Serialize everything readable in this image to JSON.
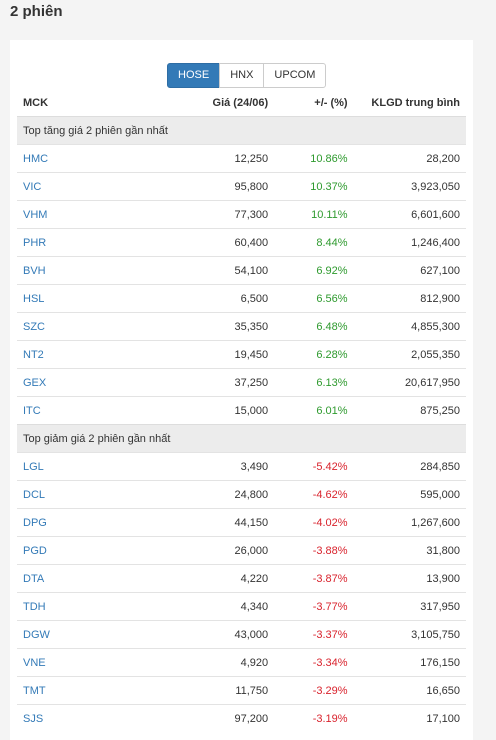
{
  "page": {
    "title": "2 phiên"
  },
  "tabs": [
    {
      "label": "HOSE",
      "active": true
    },
    {
      "label": "HNX",
      "active": false
    },
    {
      "label": "UPCOM",
      "active": false
    }
  ],
  "table": {
    "headers": {
      "symbol": "MCK",
      "price": "Giá (24/06)",
      "change": "+/- (%)",
      "volume": "KLGD trung bình"
    },
    "gainers": {
      "title": "Top tăng giá 2 phiên gần nhất",
      "rows": [
        {
          "symbol": "HMC",
          "price": "12,250",
          "change": "10.86%",
          "volume": "28,200"
        },
        {
          "symbol": "VIC",
          "price": "95,800",
          "change": "10.37%",
          "volume": "3,923,050"
        },
        {
          "symbol": "VHM",
          "price": "77,300",
          "change": "10.11%",
          "volume": "6,601,600"
        },
        {
          "symbol": "PHR",
          "price": "60,400",
          "change": "8.44%",
          "volume": "1,246,400"
        },
        {
          "symbol": "BVH",
          "price": "54,100",
          "change": "6.92%",
          "volume": "627,100"
        },
        {
          "symbol": "HSL",
          "price": "6,500",
          "change": "6.56%",
          "volume": "812,900"
        },
        {
          "symbol": "SZC",
          "price": "35,350",
          "change": "6.48%",
          "volume": "4,855,300"
        },
        {
          "symbol": "NT2",
          "price": "19,450",
          "change": "6.28%",
          "volume": "2,055,350"
        },
        {
          "symbol": "GEX",
          "price": "37,250",
          "change": "6.13%",
          "volume": "20,617,950"
        },
        {
          "symbol": "ITC",
          "price": "15,000",
          "change": "6.01%",
          "volume": "875,250"
        }
      ]
    },
    "losers": {
      "title": "Top giảm giá 2 phiên gần nhất",
      "rows": [
        {
          "symbol": "LGL",
          "price": "3,490",
          "change": "-5.42%",
          "volume": "284,850"
        },
        {
          "symbol": "DCL",
          "price": "24,800",
          "change": "-4.62%",
          "volume": "595,000"
        },
        {
          "symbol": "DPG",
          "price": "44,150",
          "change": "-4.02%",
          "volume": "1,267,600"
        },
        {
          "symbol": "PGD",
          "price": "26,000",
          "change": "-3.88%",
          "volume": "31,800"
        },
        {
          "symbol": "DTA",
          "price": "4,220",
          "change": "-3.87%",
          "volume": "13,900"
        },
        {
          "symbol": "TDH",
          "price": "4,340",
          "change": "-3.77%",
          "volume": "317,950"
        },
        {
          "symbol": "DGW",
          "price": "43,000",
          "change": "-3.37%",
          "volume": "3,105,750"
        },
        {
          "symbol": "VNE",
          "price": "4,920",
          "change": "-3.34%",
          "volume": "176,150"
        },
        {
          "symbol": "TMT",
          "price": "11,750",
          "change": "-3.29%",
          "volume": "16,650"
        },
        {
          "symbol": "SJS",
          "price": "97,200",
          "change": "-3.19%",
          "volume": "17,100"
        }
      ]
    }
  },
  "colors": {
    "up": "#2e9a2e",
    "down": "#d9232d",
    "link": "#337ab7",
    "active_tab": "#337ab7"
  }
}
